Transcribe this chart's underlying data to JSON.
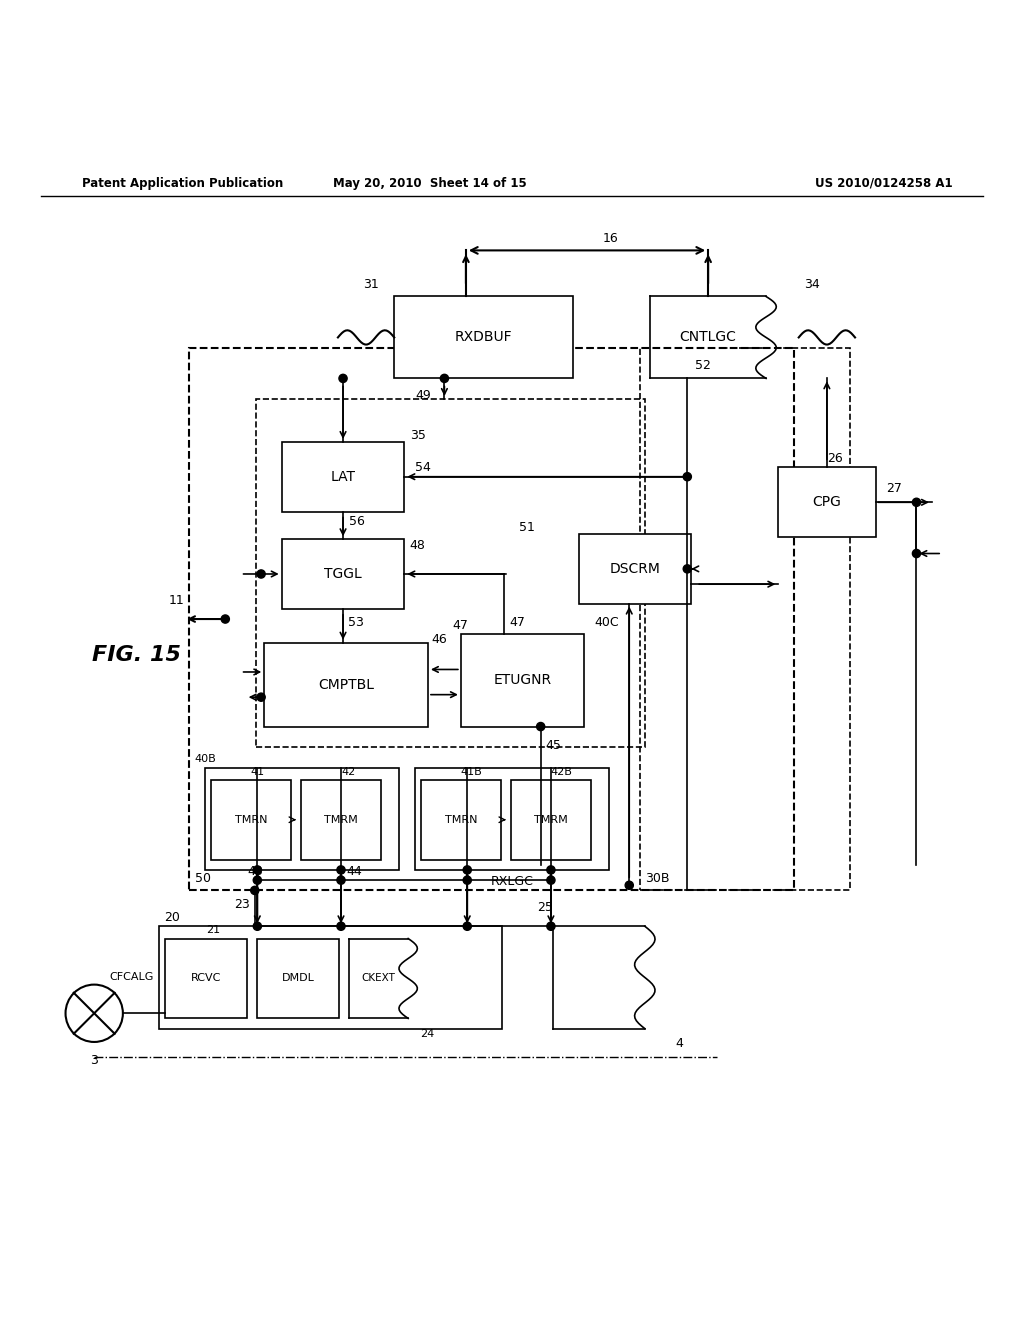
{
  "title_left": "Patent Application Publication",
  "title_mid": "May 20, 2010  Sheet 14 of 15",
  "title_right": "US 2010/0124258 A1",
  "fig_label": "FIG. 15",
  "background": "#ffffff"
}
